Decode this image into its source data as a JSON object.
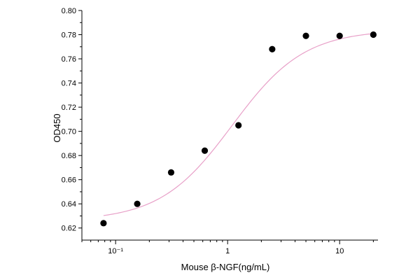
{
  "chart_data": {
    "type": "scatter",
    "xlabel": "Mouse β-NGF(ng/mL)",
    "ylabel": "OD450",
    "x_scale": "log",
    "xlim": [
      0.05,
      22
    ],
    "ylim": [
      0.61,
      0.8
    ],
    "x_ticks": [
      0.1,
      1,
      10
    ],
    "x_tick_labels": [
      "10⁻¹",
      "1",
      "10"
    ],
    "y_ticks": [
      0.62,
      0.64,
      0.66,
      0.68,
      0.7,
      0.72,
      0.74,
      0.76,
      0.78,
      0.8
    ],
    "y_tick_labels": [
      "0.62",
      "0.64",
      "0.66",
      "0.68",
      "0.70",
      "0.72",
      "0.74",
      "0.76",
      "0.78",
      "0.80"
    ],
    "grid": false,
    "legend": "none",
    "series": [
      {
        "x": [
          0.078,
          0.156,
          0.313,
          0.625,
          1.25,
          2.5,
          5,
          10,
          20
        ],
        "y": [
          0.624,
          0.64,
          0.666,
          0.684,
          0.705,
          0.768,
          0.779,
          0.779,
          0.78
        ]
      }
    ],
    "fit_curve": {
      "model": "four-parameter logistic",
      "bottom": 0.626,
      "top": 0.784,
      "ec50": 1.1,
      "hill": 1.35,
      "color": "#e8a0c8"
    },
    "point_color": "#000000"
  }
}
